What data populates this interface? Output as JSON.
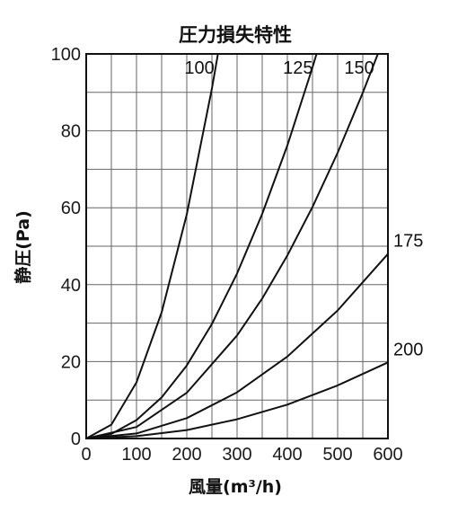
{
  "chart_data": {
    "type": "line",
    "title": "圧力損失特性",
    "xlabel": "風量(m³/h)",
    "ylabel": "静圧(Pa)",
    "xlim": [
      0,
      600
    ],
    "ylim": [
      0,
      100
    ],
    "xticks": [
      0,
      100,
      200,
      300,
      400,
      500,
      600
    ],
    "yticks": [
      0,
      20,
      40,
      60,
      80,
      100
    ],
    "grid": true,
    "colors": {
      "line": "#111111",
      "grid": "#666666",
      "background": "#ffffff"
    },
    "series": [
      {
        "name": "100",
        "x": [
          0,
          50,
          100,
          150,
          200,
          250,
          262
        ],
        "y": [
          0,
          3.6,
          14.6,
          32.8,
          58.3,
          91,
          100
        ]
      },
      {
        "name": "125",
        "x": [
          0,
          50,
          100,
          150,
          200,
          250,
          300,
          350,
          400,
          450,
          458
        ],
        "y": [
          0,
          1.2,
          4.8,
          10.7,
          19,
          29.8,
          42.9,
          58.4,
          76.2,
          96.5,
          100
        ]
      },
      {
        "name": "150",
        "x": [
          0,
          100,
          200,
          300,
          350,
          400,
          450,
          500,
          550,
          580
        ],
        "y": [
          0,
          3,
          11.9,
          26.8,
          36.4,
          47.6,
          60.2,
          74.3,
          89.9,
          100
        ]
      },
      {
        "name": "175",
        "x": [
          0,
          100,
          200,
          300,
          400,
          500,
          600
        ],
        "y": [
          0,
          1.3,
          5.3,
          12,
          21.3,
          33.3,
          48
        ]
      },
      {
        "name": "200",
        "x": [
          0,
          100,
          200,
          300,
          400,
          500,
          600
        ],
        "y": [
          0,
          0.6,
          2.2,
          5,
          8.8,
          13.8,
          19.8
        ]
      }
    ]
  }
}
